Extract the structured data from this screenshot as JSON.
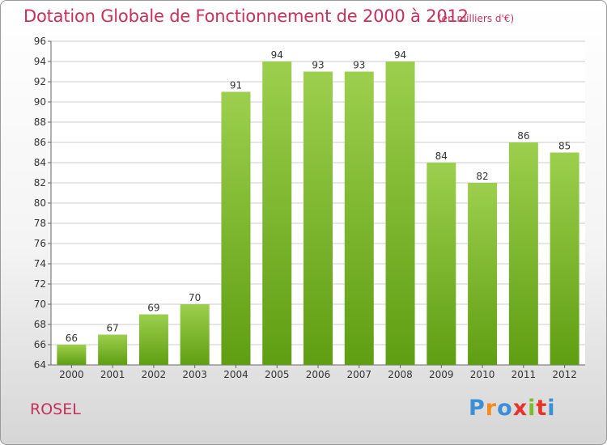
{
  "header": {
    "title": "Dotation Globale de Fonctionnement de 2000 à 2012",
    "subtitle": "(en milliers d'€)"
  },
  "footer": {
    "commune": "ROSEL",
    "logo_text": "Proxiti"
  },
  "colors": {
    "title": "#c8305a",
    "bar_top": "#9ccf4d",
    "bar_bottom": "#5f9e12",
    "grid": "#cccccc",
    "logo_letters": [
      "#3a8fd6",
      "#f28c1c",
      "#3a8fd6",
      "#e8332a",
      "#7dbb2b",
      "#e8332a",
      "#3a8fd6"
    ]
  },
  "chart_data": {
    "type": "bar",
    "title": "Dotation Globale de Fonctionnement de 2000 à 2012",
    "subtitle": "(en milliers d'€)",
    "xlabel": "",
    "ylabel": "",
    "categories": [
      "2000",
      "2001",
      "2002",
      "2003",
      "2004",
      "2005",
      "2006",
      "2007",
      "2008",
      "2009",
      "2010",
      "2011",
      "2012"
    ],
    "values": [
      66,
      67,
      69,
      70,
      91,
      94,
      93,
      93,
      94,
      84,
      82,
      86,
      85
    ],
    "ylim": [
      64,
      96
    ],
    "ytick_step": 2,
    "grid": true,
    "legend": "none",
    "data_labels": true
  }
}
